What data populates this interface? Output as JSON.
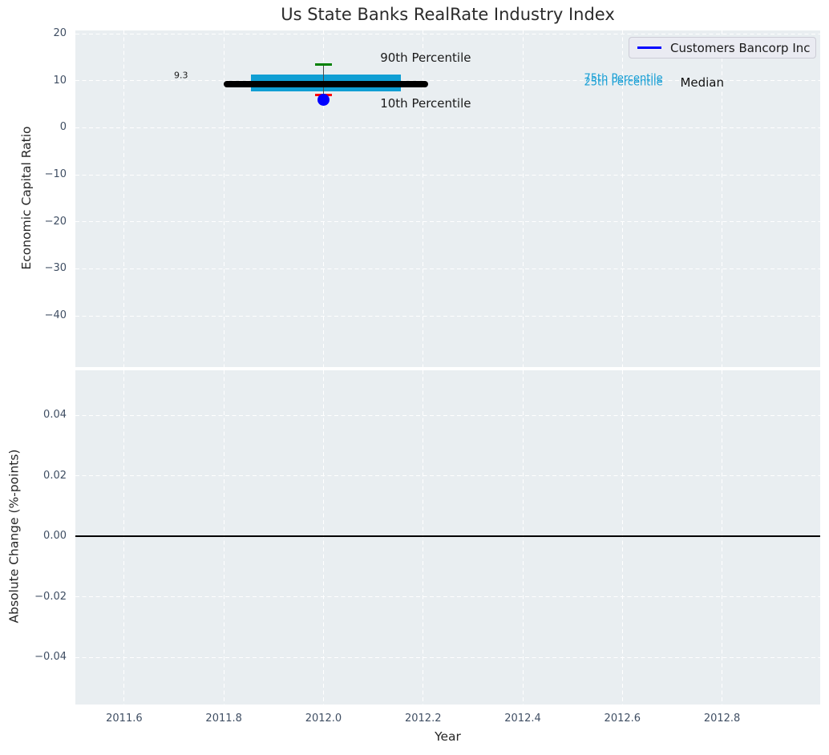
{
  "legend": {
    "label": "Customers Bancorp Inc",
    "line_color": "#0000ff"
  },
  "colors": {
    "axes_background": "#e9eef1",
    "grid": "#ffffff",
    "tick_label": "#3f4e63",
    "axis_label": "#262626",
    "title": "#2b2b2b"
  },
  "chart_data": [
    {
      "type": "boxplot",
      "title": "Us State Banks RealRate Industry Index",
      "ylabel": "Economic Capital Ratio",
      "xlabel": "",
      "grid": true,
      "legend_position": "upper right",
      "xlim": [
        2011.502,
        2012.997
      ],
      "ylim": [
        -50.9,
        20.7
      ],
      "xticks": {
        "values": [
          2011.6,
          2011.8,
          2012.0,
          2012.2,
          2012.4,
          2012.6,
          2012.8
        ],
        "labels": [
          "2011.6",
          "2011.8",
          "2012.0",
          "2012.2",
          "2012.4",
          "2012.6",
          "2012.8"
        ],
        "show_labels": false
      },
      "yticks": {
        "values": [
          20,
          10,
          0,
          -10,
          -20,
          -30,
          -40
        ],
        "labels": [
          "20",
          "10",
          "0",
          "−10",
          "−20",
          "−30",
          "−40"
        ]
      },
      "series": [
        {
          "name": "25th-75th Percentile band",
          "x_start": 2011.855,
          "x_end": 2012.155,
          "p25": 7.7,
          "p75": 11.4,
          "color": "#109fd4"
        },
        {
          "name": "10th-90th Percentile whisker",
          "x": 2012.0,
          "p90": 13.5,
          "p10": 6.9,
          "cap_halfwidth": 0.017,
          "p90_color": "#008000",
          "p10_color": "#ff0000",
          "line_color": "#4a4a4a"
        },
        {
          "name": "Median",
          "x_start": 2011.8,
          "x_end": 2012.21,
          "value": 9.3,
          "color": "#000000"
        },
        {
          "name": "Customers Bancorp Inc",
          "x": 2012.0,
          "value": 6.0,
          "marker": "circle",
          "color": "#0000ff"
        }
      ],
      "annotations": [
        {
          "text": "9.3",
          "x": 2011.714,
          "y": 11.1,
          "size": 11,
          "color": "#1a1a1a"
        },
        {
          "text": "90th Percentile",
          "x": 2012.205,
          "y": 14.9,
          "size": 15,
          "color": "#1a1a1a"
        },
        {
          "text": "10th Percentile",
          "x": 2012.205,
          "y": 5.2,
          "size": 15,
          "color": "#1a1a1a"
        },
        {
          "text": "75th Percentile",
          "x": 2012.602,
          "y": 10.44,
          "size": 13,
          "color": "#189fd5"
        },
        {
          "text": "25th Percentile",
          "x": 2012.602,
          "y": 9.55,
          "size": 13,
          "color": "#189fd5"
        },
        {
          "text": "Median",
          "x": 2012.76,
          "y": 9.6,
          "size": 15,
          "color": "#111111"
        }
      ]
    },
    {
      "type": "line",
      "title": "",
      "ylabel": "Absolute Change (%-points)",
      "xlabel": "Year",
      "grid": true,
      "xlim": [
        2011.502,
        2012.997
      ],
      "ylim": [
        -0.0555,
        0.0549
      ],
      "xticks": {
        "values": [
          2011.6,
          2011.8,
          2012.0,
          2012.2,
          2012.4,
          2012.6,
          2012.8
        ],
        "labels": [
          "2011.6",
          "2011.8",
          "2012.0",
          "2012.2",
          "2012.4",
          "2012.6",
          "2012.8"
        ],
        "show_labels": true
      },
      "yticks": {
        "values": [
          0.04,
          0.02,
          0.0,
          -0.02,
          -0.04
        ],
        "labels": [
          "0.04",
          "0.02",
          "0.00",
          "−0.02",
          "−0.04"
        ]
      },
      "series": [
        {
          "name": "zero line",
          "type": "hline",
          "value": 0.0,
          "color": "#000000"
        }
      ],
      "annotations": []
    }
  ]
}
